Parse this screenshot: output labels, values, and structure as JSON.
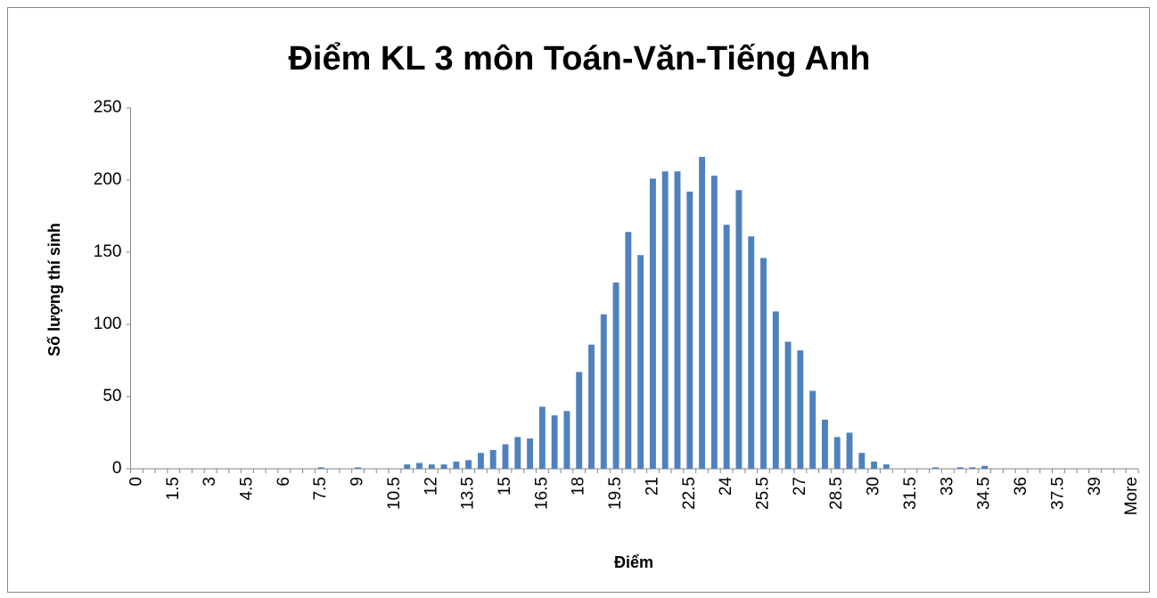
{
  "chart_data": {
    "type": "bar",
    "title": "Điểm KL 3 môn Toán-Văn-Tiếng Anh",
    "x_label": "Điểm",
    "y_label": "Số lượng thí sinh",
    "categories": [
      "0",
      null,
      null,
      "1.5",
      null,
      null,
      "3",
      null,
      null,
      "4.5",
      null,
      null,
      "6",
      null,
      null,
      "7.5",
      null,
      null,
      "9",
      null,
      null,
      "10.5",
      null,
      null,
      "12",
      null,
      null,
      "13.5",
      null,
      null,
      "15",
      null,
      null,
      "16.5",
      null,
      null,
      "18",
      null,
      null,
      "19.5",
      null,
      null,
      "21",
      null,
      null,
      "22.5",
      null,
      null,
      "24",
      null,
      null,
      "25.5",
      null,
      null,
      "27",
      null,
      null,
      "28.5",
      null,
      null,
      "30",
      null,
      null,
      "31.5",
      null,
      null,
      "33",
      null,
      null,
      "34.5",
      null,
      null,
      "36",
      null,
      null,
      "37.5",
      null,
      null,
      "39",
      null,
      null,
      "More"
    ],
    "values": [
      0,
      0,
      0,
      0,
      0,
      0,
      0,
      0,
      0,
      0,
      0,
      0,
      0,
      0,
      0,
      1,
      0,
      0,
      1,
      0,
      0,
      0,
      3,
      4,
      3,
      3,
      5,
      6,
      11,
      13,
      17,
      22,
      21,
      43,
      37,
      40,
      67,
      86,
      107,
      129,
      164,
      148,
      201,
      206,
      206,
      192,
      216,
      203,
      169,
      193,
      161,
      146,
      109,
      88,
      82,
      54,
      34,
      22,
      25,
      11,
      5,
      3,
      0,
      0,
      0,
      1,
      0,
      1,
      1,
      2,
      0,
      0,
      0,
      0,
      0,
      0,
      0,
      0,
      0,
      0,
      0,
      0
    ],
    "color": "#4f81bd",
    "ylim": [
      0,
      250
    ],
    "yticks": [
      0,
      50,
      100,
      150,
      200,
      250
    ],
    "grid": false
  }
}
